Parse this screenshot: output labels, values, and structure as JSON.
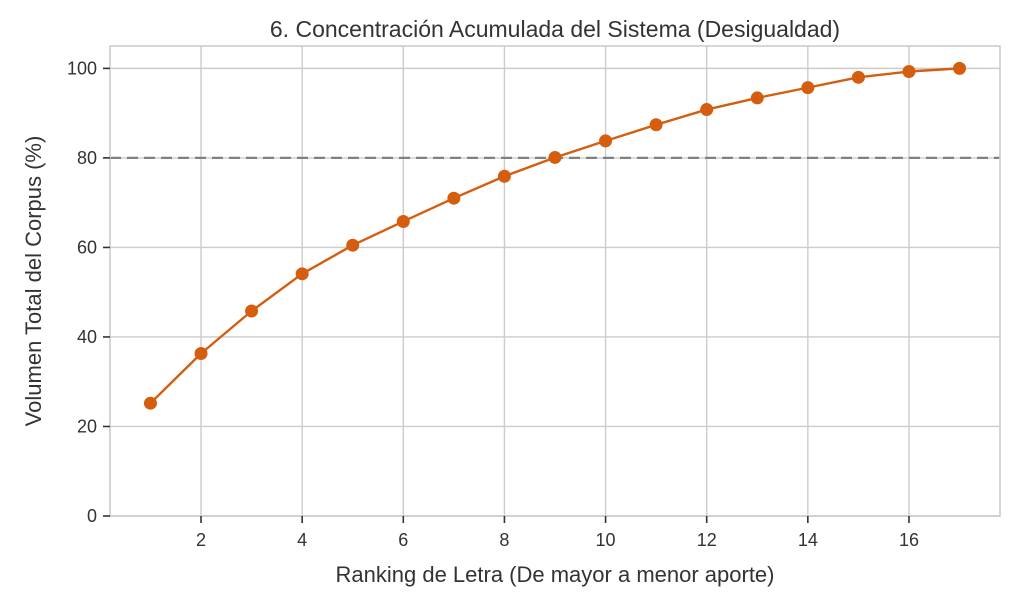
{
  "chart_data": {
    "type": "line",
    "title": "6. Concentración Acumulada del Sistema (Desigualdad)",
    "xlabel": "Ranking de Letra (De mayor a menor aporte)",
    "ylabel": "Volumen Total del Corpus (%)",
    "xlim": [
      0.2,
      17.8
    ],
    "ylim": [
      0,
      105
    ],
    "x_ticks": [
      2,
      4,
      6,
      8,
      10,
      12,
      14,
      16
    ],
    "y_ticks": [
      0,
      20,
      40,
      60,
      80,
      100
    ],
    "grid": true,
    "reference_line": {
      "axis": "y",
      "value": 80,
      "style": "dashed",
      "color": "#808080"
    },
    "series": [
      {
        "color": "#d45e0e",
        "marker": "circle",
        "x": [
          1,
          2,
          3,
          4,
          5,
          6,
          7,
          8,
          9,
          10,
          11,
          12,
          13,
          14,
          15,
          16,
          17
        ],
        "y": [
          25.2,
          36.3,
          45.8,
          54.1,
          60.5,
          65.8,
          71.0,
          75.9,
          80.1,
          83.8,
          87.4,
          90.8,
          93.4,
          95.7,
          98.0,
          99.3,
          100.0
        ]
      }
    ]
  }
}
